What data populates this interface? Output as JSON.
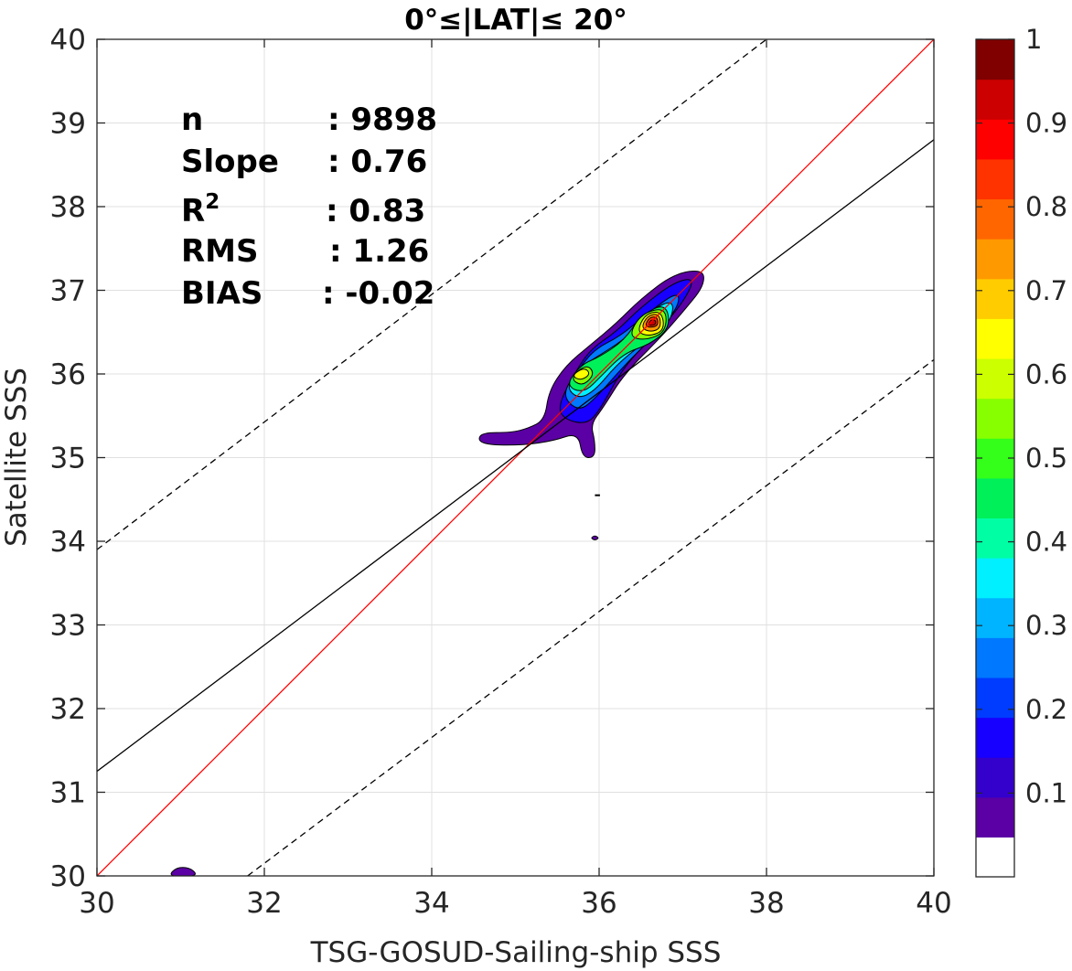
{
  "chart_data": {
    "type": "contour",
    "title": "0°≤|LAT|≤ 20°",
    "xlabel": "TSG-GOSUD-Sailing-ship SSS",
    "ylabel": "Satellite SSS",
    "xlim": [
      30,
      40
    ],
    "ylim": [
      30,
      40
    ],
    "xticks": [
      30,
      32,
      34,
      36,
      38,
      40
    ],
    "yticks": [
      30,
      31,
      32,
      33,
      34,
      35,
      36,
      37,
      38,
      39,
      40
    ],
    "grid": true,
    "stats": [
      {
        "key": "n",
        "value": ": 9898"
      },
      {
        "key": "Slope",
        "value": ": 0.76"
      },
      {
        "key": "R",
        "sup": "2",
        "value": ": 0.83"
      },
      {
        "key": "RMS",
        "value": ": 1.26"
      },
      {
        "key": "BIAS",
        "value": ": -0.02"
      }
    ],
    "lines": [
      {
        "name": "one-to-one",
        "color": "#ff0000",
        "x": [
          30,
          40
        ],
        "y": [
          30,
          40
        ]
      },
      {
        "name": "regression",
        "color": "#000000",
        "x": [
          30,
          40
        ],
        "y": [
          31.25,
          38.8
        ]
      },
      {
        "name": "upper-bound",
        "color": "#000000",
        "dash": true,
        "x": [
          30,
          38
        ],
        "y": [
          33.9,
          40
        ]
      },
      {
        "name": "lower-bound",
        "color": "#000000",
        "dash": true,
        "x": [
          31.8,
          40
        ],
        "y": [
          30,
          36.17
        ]
      }
    ],
    "density_regions": [
      {
        "level": 0.05,
        "points": [
          [
            34.6,
            35.3
          ],
          [
            34.95,
            35.3
          ],
          [
            35.15,
            35.35
          ],
          [
            35.35,
            35.45
          ],
          [
            35.4,
            35.8
          ],
          [
            35.6,
            36.1
          ],
          [
            35.9,
            36.35
          ],
          [
            36.2,
            36.6
          ],
          [
            36.5,
            36.9
          ],
          [
            36.9,
            37.2
          ],
          [
            37.25,
            37.25
          ],
          [
            37.25,
            37.05
          ],
          [
            37.05,
            36.8
          ],
          [
            36.75,
            36.45
          ],
          [
            36.3,
            36.0
          ],
          [
            36.05,
            35.6
          ],
          [
            35.9,
            35.4
          ],
          [
            35.95,
            35.2
          ],
          [
            35.95,
            35.0
          ],
          [
            35.8,
            35.0
          ],
          [
            35.75,
            35.3
          ],
          [
            35.45,
            35.2
          ],
          [
            35.1,
            35.15
          ],
          [
            34.7,
            35.15
          ],
          [
            34.55,
            35.2
          ]
        ]
      },
      {
        "level": 0.15,
        "points": [
          [
            35.5,
            35.6
          ],
          [
            35.7,
            36.0
          ],
          [
            35.9,
            36.3
          ],
          [
            36.2,
            36.5
          ],
          [
            36.5,
            36.8
          ],
          [
            36.9,
            37.1
          ],
          [
            37.15,
            37.15
          ],
          [
            37.0,
            36.85
          ],
          [
            36.7,
            36.5
          ],
          [
            36.3,
            36.1
          ],
          [
            36.0,
            35.55
          ],
          [
            35.85,
            35.4
          ],
          [
            35.6,
            35.45
          ]
        ]
      },
      {
        "level": 0.25,
        "points": [
          [
            35.55,
            35.75
          ],
          [
            35.75,
            36.05
          ],
          [
            35.95,
            36.3
          ],
          [
            36.25,
            36.45
          ],
          [
            36.55,
            36.7
          ],
          [
            36.95,
            37.0
          ],
          [
            36.95,
            36.8
          ],
          [
            36.65,
            36.45
          ],
          [
            36.3,
            36.1
          ],
          [
            35.95,
            35.7
          ],
          [
            35.75,
            35.55
          ]
        ]
      },
      {
        "level": 0.35,
        "points": [
          [
            35.6,
            35.85
          ],
          [
            35.8,
            36.1
          ],
          [
            36.05,
            36.25
          ],
          [
            36.35,
            36.45
          ],
          [
            36.6,
            36.75
          ],
          [
            36.9,
            36.9
          ],
          [
            36.85,
            36.6
          ],
          [
            36.5,
            36.35
          ],
          [
            36.2,
            36.1
          ],
          [
            35.95,
            35.8
          ],
          [
            35.75,
            35.7
          ]
        ]
      },
      {
        "level": 0.45,
        "points": [
          [
            35.62,
            35.9
          ],
          [
            35.8,
            36.12
          ],
          [
            36.0,
            36.2
          ],
          [
            36.3,
            36.4
          ],
          [
            36.5,
            36.7
          ],
          [
            36.8,
            36.85
          ],
          [
            36.85,
            36.55
          ],
          [
            36.6,
            36.35
          ],
          [
            36.3,
            36.25
          ],
          [
            36.0,
            35.95
          ],
          [
            35.85,
            35.8
          ],
          [
            35.7,
            35.8
          ]
        ]
      },
      {
        "level": 0.55,
        "points": [
          [
            35.65,
            35.95
          ],
          [
            35.85,
            36.12
          ],
          [
            35.95,
            36.0
          ],
          [
            35.8,
            35.85
          ]
        ]
      },
      {
        "level": 0.55,
        "points": [
          [
            36.35,
            36.45
          ],
          [
            36.5,
            36.72
          ],
          [
            36.8,
            36.8
          ],
          [
            36.8,
            36.5
          ],
          [
            36.55,
            36.4
          ]
        ]
      },
      {
        "level": 0.65,
        "points": [
          [
            35.67,
            35.98
          ],
          [
            35.82,
            36.08
          ],
          [
            35.9,
            36.0
          ],
          [
            35.78,
            35.92
          ]
        ]
      },
      {
        "level": 0.65,
        "points": [
          [
            36.45,
            36.5
          ],
          [
            36.55,
            36.72
          ],
          [
            36.75,
            36.75
          ],
          [
            36.78,
            36.52
          ],
          [
            36.6,
            36.45
          ]
        ]
      },
      {
        "level": 0.75,
        "points": [
          [
            36.5,
            36.55
          ],
          [
            36.58,
            36.7
          ],
          [
            36.72,
            36.72
          ],
          [
            36.74,
            36.55
          ],
          [
            36.62,
            36.5
          ]
        ]
      },
      {
        "level": 0.85,
        "points": [
          [
            36.54,
            36.56
          ],
          [
            36.6,
            36.68
          ],
          [
            36.7,
            36.68
          ],
          [
            36.7,
            36.56
          ]
        ]
      },
      {
        "level": 0.95,
        "points": [
          [
            36.58,
            36.58
          ],
          [
            36.62,
            36.65
          ],
          [
            36.68,
            36.64
          ],
          [
            36.67,
            36.58
          ]
        ]
      },
      {
        "level": 0.05,
        "points": [
          [
            30.85,
            30.0
          ],
          [
            30.95,
            30.1
          ],
          [
            31.1,
            30.1
          ],
          [
            31.2,
            30.02
          ],
          [
            31.1,
            29.99
          ]
        ]
      },
      {
        "level": 0.05,
        "points": [
          [
            35.9,
            34.04
          ],
          [
            35.95,
            34.07
          ],
          [
            36.0,
            34.04
          ],
          [
            35.95,
            34.01
          ]
        ]
      }
    ],
    "colorbar": {
      "range": [
        0,
        1
      ],
      "ticks": [
        1,
        0.9,
        0.8,
        0.7,
        0.6,
        0.5,
        0.4,
        0.3,
        0.2,
        0.1
      ],
      "colors": [
        "#ffffff",
        "#5b00a4",
        "#3300cc",
        "#1700ff",
        "#003cff",
        "#0078ff",
        "#00b4ff",
        "#00f0ff",
        "#00ffa5",
        "#00f05a",
        "#33ff1a",
        "#88ff00",
        "#ccff00",
        "#ffff00",
        "#ffcc00",
        "#ff9900",
        "#ff6600",
        "#ff3300",
        "#ff0000",
        "#cc0000",
        "#800000"
      ]
    }
  }
}
